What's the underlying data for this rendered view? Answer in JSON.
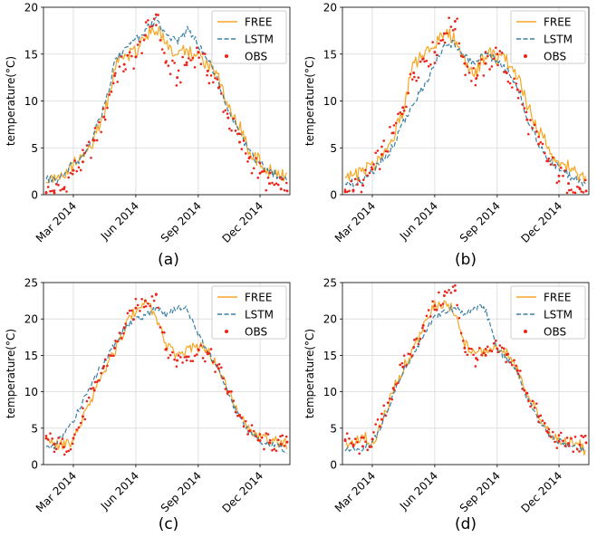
{
  "chart_data": [
    {
      "type": "line",
      "panel": "(a)",
      "ylabel": "temperature(°C)",
      "xlabel": "",
      "ylim": [
        0,
        20
      ],
      "yticks": [
        0,
        5,
        10,
        15,
        20
      ],
      "xlim": [
        "2014-01-16",
        "2015-01-14"
      ],
      "xticks": [
        {
          "date": "2014-03-01",
          "label": "Mar 2014"
        },
        {
          "date": "2014-06-01",
          "label": "Jun 2014"
        },
        {
          "date": "2014-09-01",
          "label": "Sep 2014"
        },
        {
          "date": "2014-12-01",
          "label": "Dec 2014"
        }
      ],
      "grid": true,
      "legend_position": "top-right",
      "legend": [
        "FREE",
        "LSTM",
        "OBS"
      ],
      "x": [
        "2014-01-20",
        "2014-02-01",
        "2014-02-15",
        "2014-03-01",
        "2014-03-15",
        "2014-04-01",
        "2014-04-15",
        "2014-05-01",
        "2014-05-15",
        "2014-06-01",
        "2014-06-15",
        "2014-07-01",
        "2014-07-15",
        "2014-08-01",
        "2014-08-15",
        "2014-09-01",
        "2014-09-15",
        "2014-10-01",
        "2014-10-15",
        "2014-11-01",
        "2014-11-15",
        "2014-12-01",
        "2014-12-15",
        "2015-01-01",
        "2015-01-10"
      ],
      "series": [
        {
          "name": "FREE",
          "values": [
            1.8,
            1.7,
            2.3,
            3.2,
            3.9,
            6.0,
            8.4,
            13.5,
            14.8,
            15.3,
            16.7,
            18.0,
            16.2,
            14.9,
            15.3,
            14.6,
            14.1,
            12.5,
            9.5,
            7.2,
            4.8,
            3.4,
            2.6,
            2.0,
            1.7
          ]
        },
        {
          "name": "LSTM",
          "values": [
            1.6,
            1.5,
            2.1,
            3.3,
            4.0,
            6.6,
            9.2,
            14.0,
            15.6,
            16.4,
            17.6,
            18.5,
            17.1,
            16.2,
            17.6,
            16.1,
            14.6,
            12.1,
            9.1,
            6.7,
            4.5,
            3.3,
            2.5,
            1.8,
            1.5
          ]
        },
        {
          "name": "OBS",
          "values": [
            0.2,
            0.2,
            0.6,
            2.6,
            3.5,
            5.8,
            8.3,
            12.7,
            13.9,
            14.7,
            17.0,
            19.2,
            14.1,
            12.5,
            14.1,
            15.2,
            13.2,
            11.4,
            8.2,
            5.6,
            3.9,
            2.3,
            1.2,
            0.6,
            0.4
          ]
        }
      ]
    },
    {
      "type": "line",
      "panel": "(b)",
      "ylabel": "temperature(°C)",
      "xlabel": "",
      "ylim": [
        0,
        20
      ],
      "yticks": [
        0,
        5,
        10,
        15,
        20
      ],
      "xlim": [
        "2014-01-16",
        "2015-01-14"
      ],
      "xticks": [
        {
          "date": "2014-03-01",
          "label": "Mar 2014"
        },
        {
          "date": "2014-06-01",
          "label": "Jun 2014"
        },
        {
          "date": "2014-09-01",
          "label": "Sep 2014"
        },
        {
          "date": "2014-12-01",
          "label": "Dec 2014"
        }
      ],
      "grid": true,
      "legend_position": "top-right",
      "legend": [
        "FREE",
        "LSTM",
        "OBS"
      ],
      "x": [
        "2014-01-20",
        "2014-02-01",
        "2014-02-15",
        "2014-03-01",
        "2014-03-15",
        "2014-04-01",
        "2014-04-15",
        "2014-05-01",
        "2014-05-15",
        "2014-06-01",
        "2014-06-15",
        "2014-07-01",
        "2014-07-15",
        "2014-08-01",
        "2014-08-15",
        "2014-09-01",
        "2014-09-15",
        "2014-10-01",
        "2014-10-15",
        "2014-11-01",
        "2014-11-15",
        "2014-12-01",
        "2014-12-15",
        "2015-01-01",
        "2015-01-10"
      ],
      "series": [
        {
          "name": "FREE",
          "values": [
            1.9,
            1.8,
            2.4,
            3.0,
            4.0,
            6.0,
            9.0,
            13.8,
            15.2,
            15.9,
            17.6,
            16.4,
            14.3,
            13.2,
            15.1,
            14.6,
            14.3,
            12.7,
            9.6,
            7.1,
            4.9,
            3.5,
            3.0,
            2.1,
            1.8
          ]
        },
        {
          "name": "LSTM",
          "values": [
            1.4,
            1.3,
            1.6,
            2.5,
            3.6,
            5.2,
            7.6,
            9.6,
            11.5,
            14.0,
            15.9,
            16.2,
            14.7,
            14.0,
            15.2,
            14.2,
            13.4,
            11.4,
            8.2,
            5.5,
            3.9,
            2.8,
            2.1,
            1.4,
            1.1
          ]
        },
        {
          "name": "OBS",
          "values": [
            0.3,
            0.5,
            1.0,
            2.7,
            4.3,
            6.6,
            9.3,
            13.0,
            14.5,
            15.2,
            17.2,
            18.5,
            14.0,
            12.4,
            14.0,
            15.0,
            13.0,
            11.2,
            8.0,
            5.4,
            3.6,
            2.0,
            1.2,
            0.6,
            0.4
          ]
        }
      ]
    },
    {
      "type": "line",
      "panel": "(c)",
      "ylabel": "temperature(°C)",
      "xlabel": "",
      "ylim": [
        0,
        25
      ],
      "yticks": [
        0,
        5,
        10,
        15,
        20,
        25
      ],
      "xlim": [
        "2014-01-16",
        "2015-01-14"
      ],
      "xticks": [
        {
          "date": "2014-03-01",
          "label": "Mar 2014"
        },
        {
          "date": "2014-06-01",
          "label": "Jun 2014"
        },
        {
          "date": "2014-09-01",
          "label": "Sep 2014"
        },
        {
          "date": "2014-12-01",
          "label": "Dec 2014"
        }
      ],
      "grid": true,
      "legend_position": "top-right",
      "legend": [
        "FREE",
        "LSTM",
        "OBS"
      ],
      "x": [
        "2014-01-20",
        "2014-02-01",
        "2014-02-15",
        "2014-03-01",
        "2014-03-15",
        "2014-04-01",
        "2014-04-15",
        "2014-05-01",
        "2014-05-15",
        "2014-06-01",
        "2014-06-15",
        "2014-07-01",
        "2014-07-15",
        "2014-08-01",
        "2014-08-15",
        "2014-09-01",
        "2014-09-15",
        "2014-10-01",
        "2014-10-15",
        "2014-11-01",
        "2014-11-15",
        "2014-12-01",
        "2014-12-15",
        "2015-01-01",
        "2015-01-10"
      ],
      "series": [
        {
          "name": "FREE",
          "values": [
            3.2,
            2.6,
            2.6,
            3.4,
            6.2,
            10.0,
            13.0,
            15.4,
            18.6,
            21.2,
            22.0,
            20.6,
            16.2,
            15.0,
            15.5,
            16.2,
            15.5,
            13.5,
            10.3,
            7.2,
            4.9,
            3.6,
            3.3,
            3.1,
            2.9
          ]
        },
        {
          "name": "LSTM",
          "values": [
            2.2,
            2.5,
            4.2,
            6.0,
            8.6,
            12.0,
            14.0,
            16.5,
            18.8,
            20.0,
            20.5,
            21.4,
            20.6,
            21.4,
            21.6,
            17.8,
            15.6,
            13.0,
            9.6,
            6.5,
            4.5,
            3.3,
            2.8,
            2.4,
            1.6
          ]
        },
        {
          "name": "OBS",
          "values": [
            3.6,
            2.8,
            2.4,
            3.6,
            6.6,
            10.2,
            13.5,
            16.0,
            18.8,
            21.5,
            22.5,
            23.4,
            15.8,
            14.3,
            14.8,
            15.8,
            15.2,
            13.2,
            10.0,
            6.8,
            4.6,
            3.3,
            3.0,
            2.8,
            3.1
          ]
        }
      ]
    },
    {
      "type": "line",
      "panel": "(d)",
      "ylabel": "temperature(°C)",
      "xlabel": "",
      "ylim": [
        0,
        25
      ],
      "yticks": [
        0,
        5,
        10,
        15,
        20,
        25
      ],
      "xlim": [
        "2014-01-16",
        "2015-01-14"
      ],
      "xticks": [
        {
          "date": "2014-03-01",
          "label": "Mar 2014"
        },
        {
          "date": "2014-06-01",
          "label": "Jun 2014"
        },
        {
          "date": "2014-09-01",
          "label": "Sep 2014"
        },
        {
          "date": "2014-12-01",
          "label": "Dec 2014"
        }
      ],
      "grid": true,
      "legend_position": "top-right",
      "legend": [
        "FREE",
        "LSTM",
        "OBS"
      ],
      "x": [
        "2014-01-20",
        "2014-02-01",
        "2014-02-15",
        "2014-03-01",
        "2014-03-15",
        "2014-04-01",
        "2014-04-15",
        "2014-05-01",
        "2014-05-15",
        "2014-06-01",
        "2014-06-15",
        "2014-07-01",
        "2014-07-15",
        "2014-08-01",
        "2014-08-15",
        "2014-09-01",
        "2014-09-15",
        "2014-10-01",
        "2014-10-15",
        "2014-11-01",
        "2014-11-15",
        "2014-12-01",
        "2014-12-15",
        "2015-01-01",
        "2015-01-10"
      ],
      "series": [
        {
          "name": "FREE",
          "values": [
            3.0,
            2.4,
            4.2,
            2.8,
            5.8,
            10.2,
            13.2,
            15.8,
            18.9,
            21.8,
            22.4,
            20.8,
            16.6,
            15.4,
            15.6,
            15.8,
            15.3,
            13.0,
            9.6,
            6.8,
            4.6,
            3.5,
            3.2,
            2.6,
            1.8
          ]
        },
        {
          "name": "LSTM",
          "values": [
            2.0,
            2.1,
            2.3,
            3.1,
            5.4,
            9.6,
            12.8,
            15.2,
            17.9,
            20.2,
            21.1,
            21.5,
            20.8,
            21.7,
            21.2,
            15.8,
            14.6,
            12.7,
            9.2,
            6.2,
            4.3,
            3.2,
            2.6,
            2.0,
            1.7
          ]
        },
        {
          "name": "OBS",
          "values": [
            3.3,
            2.7,
            2.5,
            3.5,
            6.2,
            10.5,
            13.4,
            16.1,
            19.1,
            21.8,
            23.2,
            23.9,
            16.0,
            14.6,
            15.0,
            15.9,
            15.1,
            12.9,
            9.8,
            6.6,
            4.4,
            3.2,
            2.9,
            2.7,
            3.0
          ]
        }
      ]
    }
  ]
}
